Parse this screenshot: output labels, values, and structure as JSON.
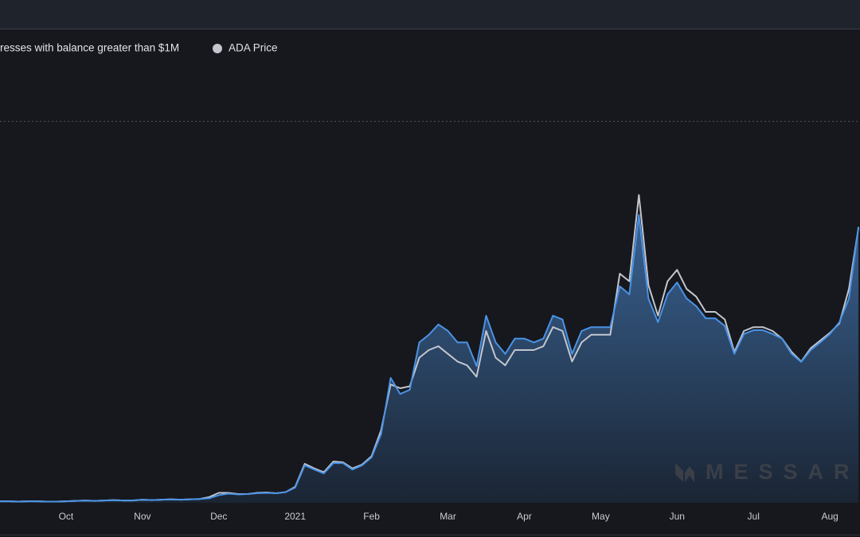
{
  "chart_data": {
    "type": "area-line",
    "watermark": "MESSAR",
    "categories": [
      null,
      null,
      null,
      null,
      null,
      null,
      null,
      "Oct",
      null,
      null,
      null,
      null,
      null,
      null,
      null,
      "Nov",
      null,
      null,
      null,
      null,
      null,
      null,
      null,
      "Dec",
      null,
      null,
      null,
      null,
      null,
      null,
      null,
      "2021",
      null,
      null,
      null,
      null,
      null,
      null,
      null,
      "Feb",
      null,
      null,
      null,
      null,
      null,
      null,
      null,
      "Mar",
      null,
      null,
      null,
      null,
      null,
      null,
      null,
      "Apr",
      null,
      null,
      null,
      null,
      null,
      null,
      null,
      "May",
      null,
      null,
      null,
      null,
      null,
      null,
      null,
      "Jun",
      null,
      null,
      null,
      null,
      null,
      null,
      null,
      "Jul",
      null,
      null,
      null,
      null,
      null,
      null,
      null,
      "Aug",
      null,
      null,
      null
    ],
    "ylim": [
      0,
      100
    ],
    "series": [
      {
        "name": "resses with balance greater than $1M",
        "color": "#4a93e6",
        "values": [
          0.4,
          0.4,
          0.3,
          0.4,
          0.4,
          0.3,
          0.3,
          0.4,
          0.5,
          0.6,
          0.5,
          0.6,
          0.7,
          0.6,
          0.6,
          0.8,
          0.7,
          0.8,
          0.9,
          0.8,
          0.9,
          1,
          1.2,
          2,
          2.4,
          2.2,
          2.3,
          2.5,
          2.6,
          2.5,
          2.8,
          4,
          9.8,
          8.7,
          7.7,
          10.4,
          10.4,
          8.7,
          9.8,
          11.9,
          18,
          32.7,
          28.5,
          29.6,
          42,
          44,
          46.7,
          45,
          42,
          42,
          35.8,
          49,
          42,
          39,
          43,
          43,
          42,
          43,
          49,
          48,
          39,
          45,
          46,
          46,
          46,
          56.7,
          54.6,
          75.4,
          53.5,
          47.3,
          54.6,
          57.7,
          53.5,
          51.5,
          48.3,
          48.3,
          46.3,
          39,
          44.2,
          45.2,
          45.2,
          44.2,
          43,
          39,
          36.9,
          40,
          42,
          44.2,
          47.3,
          53.5,
          72.3
        ]
      },
      {
        "name": "ADA Price",
        "color": "#c3c6ce",
        "values": [
          0.4,
          0.4,
          0.3,
          0.4,
          0.4,
          0.3,
          0.3,
          0.4,
          0.5,
          0.6,
          0.5,
          0.6,
          0.7,
          0.6,
          0.6,
          0.8,
          0.7,
          0.8,
          0.9,
          0.8,
          0.9,
          1,
          1.5,
          2.6,
          2.6,
          2.3,
          2.3,
          2.6,
          2.7,
          2.5,
          2.8,
          4.2,
          10.2,
          9,
          8,
          10.8,
          10.6,
          9,
          10,
          12.2,
          19,
          31,
          30,
          30.5,
          38,
          40,
          41,
          39,
          37,
          36,
          33,
          45,
          38,
          36,
          40,
          40,
          40,
          41,
          46,
          45,
          37,
          42,
          44,
          44,
          44,
          60,
          58,
          80.6,
          57,
          49,
          58,
          61,
          56,
          54,
          50,
          50,
          48,
          39.5,
          45,
          46,
          46,
          45,
          43,
          39.5,
          37,
          40.5,
          42.5,
          44.5,
          47,
          56,
          72
        ]
      }
    ]
  }
}
